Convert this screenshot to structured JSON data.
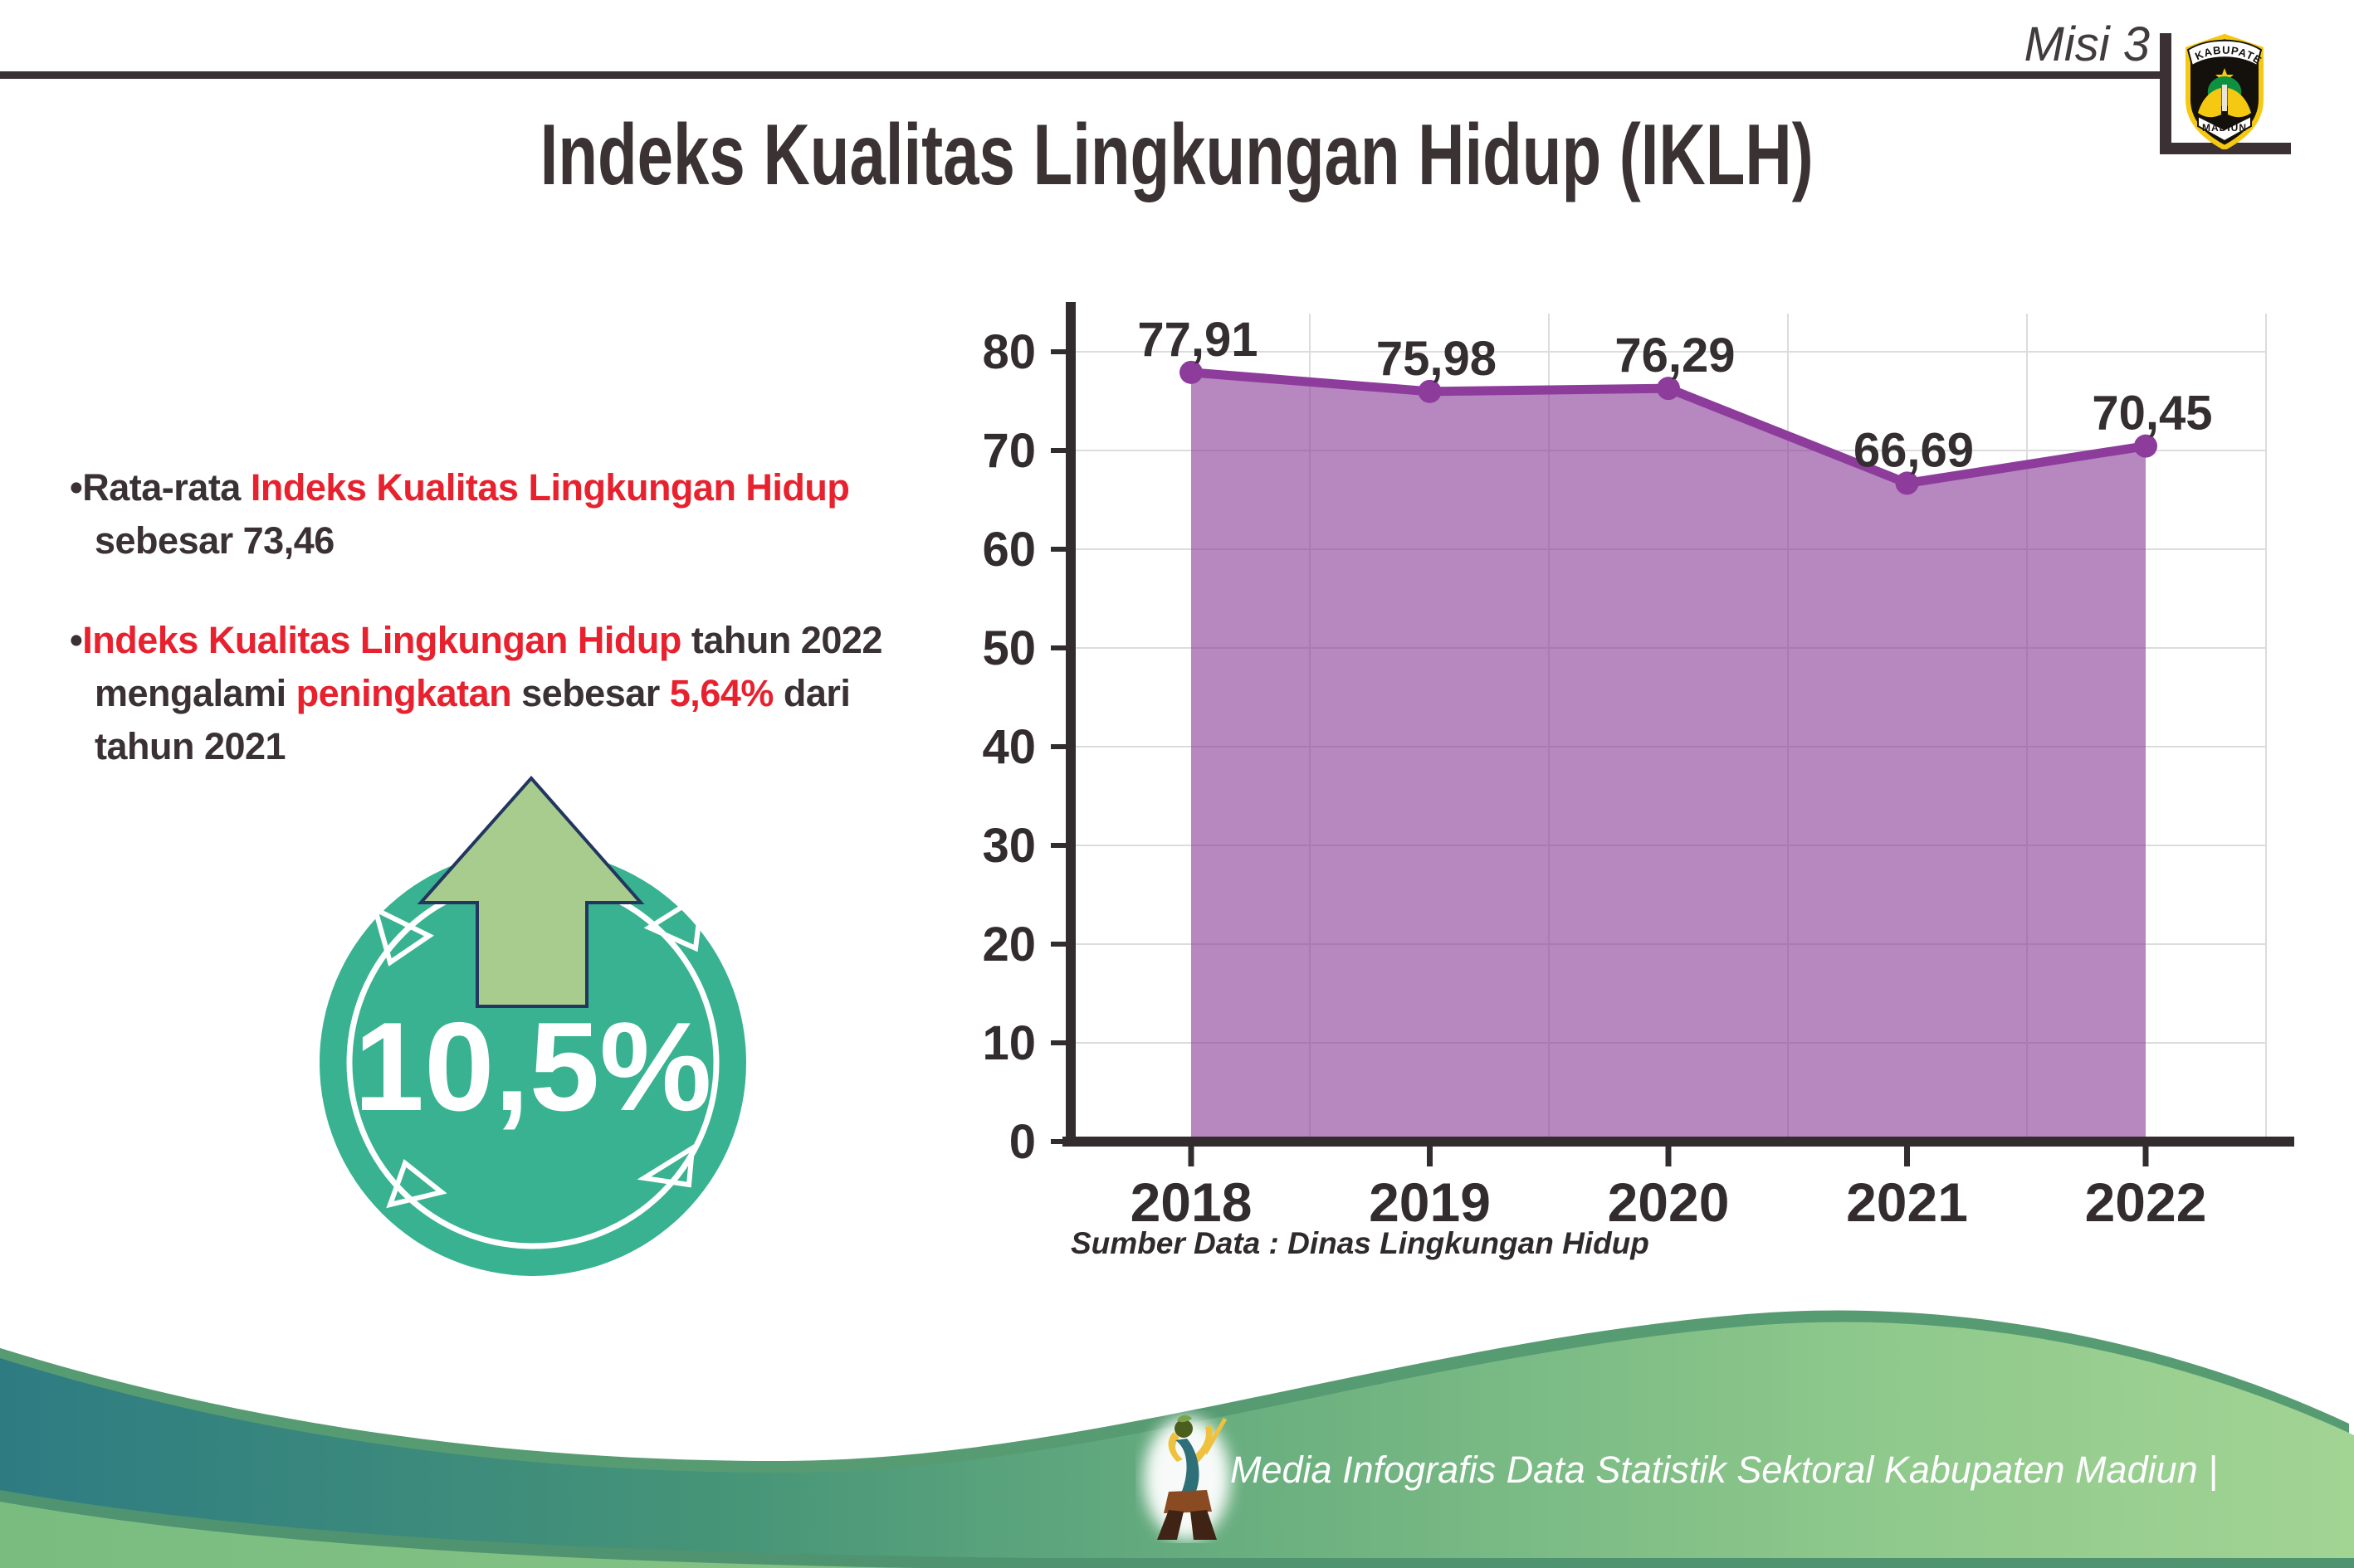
{
  "header": {
    "misi": "Misi 3",
    "title": "Indeks Kualitas Lingkungan Hidup (IKLH)",
    "logo": {
      "top": "KABUPATEN",
      "bottom": "MADIUN"
    }
  },
  "bullets": {
    "b1_prefix": "•Rata-rata ",
    "b1_highlight": "Indeks Kualitas Lingkungan Hidup",
    "b1_line2": "sebesar 73,46",
    "b2_bullet": "•",
    "b2_red1": "Indeks Kualitas Lingkungan Hidup",
    "b2_dark1": " tahun 2022",
    "b2_dark2": "mengalami ",
    "b2_red2": "peningkatan",
    "b2_dark3": " sebesar ",
    "b2_red3": "5,64%",
    "b2_dark4": " dari",
    "b2_line3": "tahun 2021"
  },
  "badge": {
    "value": "10,5%",
    "circle_color": "#39b292",
    "arrow_color": "#a7cc8e"
  },
  "chart_data": {
    "type": "area",
    "title": "Indeks Kualitas Lingkungan Hidup (IKLH)",
    "categories": [
      "2018",
      "2019",
      "2020",
      "2021",
      "2022"
    ],
    "series": [
      {
        "name": "IKLH",
        "values": [
          77.91,
          75.98,
          76.29,
          66.69,
          70.45
        ]
      }
    ],
    "point_labels": [
      "77,91",
      "75,98",
      "76,29",
      "66,69",
      "70,45"
    ],
    "xlabel": "",
    "ylabel": "",
    "ylim": [
      0,
      80
    ],
    "ytick_step": 10,
    "yticks": [
      "0",
      "10",
      "20",
      "30",
      "40",
      "50",
      "60",
      "70",
      "80"
    ],
    "grid": true,
    "legend": "none",
    "gridline_position": "between-categories",
    "source": "Sumber Data : Dinas Lingkungan Hidup",
    "colors": {
      "line": "#8d3c9b",
      "fill": "rgba(139,61,154,0.62)",
      "axis": "#332c2e",
      "grid": "#dcdcdc",
      "text": "#332c2e"
    }
  },
  "footer": {
    "credit": "Media Infografis Data Statistik Sektoral Kabupaten Madiun |"
  },
  "colors": {
    "accent_red": "#e8212e",
    "dark_text": "#3a3134",
    "badge_teal": "#39b292",
    "wave_teal": "#2e7c82",
    "wave_green": "#9dd193"
  }
}
